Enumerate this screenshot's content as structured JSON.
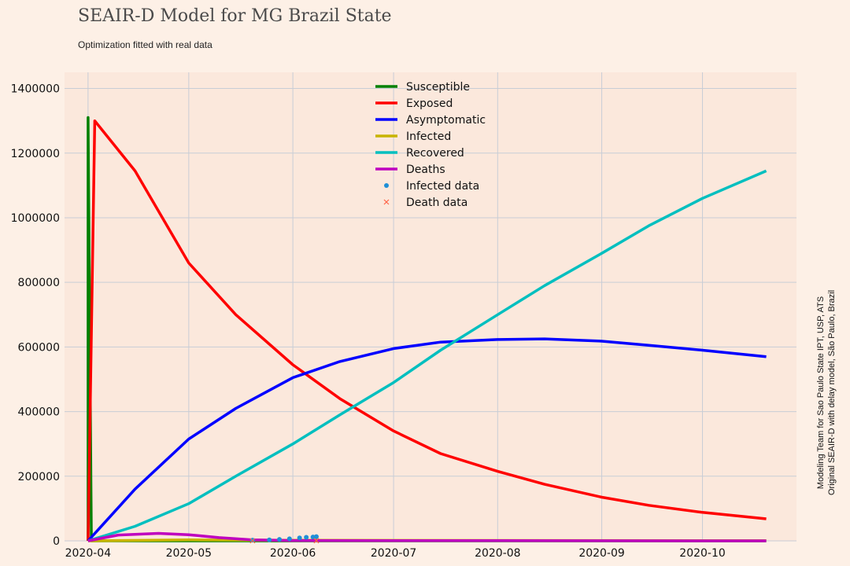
{
  "header": {
    "title": "SEAIR-D Model for MG Brazil State",
    "subtitle": "Optimization fitted with real data"
  },
  "side_note": {
    "line1": "Modeling Team for Sao Paulo State IPT, USP, ATS",
    "line2": "Original SEAIR-D with delay model, São Paulo, Brazil"
  },
  "chart_data": {
    "type": "line",
    "x_start": "2020-04-01",
    "x_end": "2020-10-20",
    "xlim": [
      "2020-03-25",
      "2020-10-29"
    ],
    "ylim": [
      0,
      1450000
    ],
    "yticks": [
      0,
      200000,
      400000,
      600000,
      800000,
      1000000,
      1200000,
      1400000
    ],
    "ytick_labels": [
      "0",
      "200000",
      "400000",
      "600000",
      "800000",
      "1000000",
      "1200000",
      "1400000"
    ],
    "xticks": [
      "2020-04-01",
      "2020-05-01",
      "2020-06-01",
      "2020-07-01",
      "2020-08-01",
      "2020-09-01",
      "2020-10-01"
    ],
    "xtick_labels": [
      "2020-04",
      "2020-05",
      "2020-06",
      "2020-07",
      "2020-08",
      "2020-09",
      "2020-10"
    ],
    "grid": true,
    "legend_position": "top-center",
    "series": [
      {
        "name": "Susceptible",
        "color": "#008000",
        "style": "line",
        "points": [
          [
            "2020-04-01",
            0
          ],
          [
            "2020-04-01",
            1310000
          ],
          [
            "2020-04-02",
            0
          ],
          [
            "2020-10-20",
            0
          ]
        ]
      },
      {
        "name": "Exposed",
        "color": "#ff0000",
        "style": "line",
        "points": [
          [
            "2020-04-01",
            0
          ],
          [
            "2020-04-03",
            1300000
          ],
          [
            "2020-04-15",
            1145000
          ],
          [
            "2020-05-01",
            860000
          ],
          [
            "2020-05-15",
            700000
          ],
          [
            "2020-06-01",
            545000
          ],
          [
            "2020-06-15",
            440000
          ],
          [
            "2020-07-01",
            340000
          ],
          [
            "2020-07-15",
            270000
          ],
          [
            "2020-08-01",
            215000
          ],
          [
            "2020-08-15",
            175000
          ],
          [
            "2020-09-01",
            135000
          ],
          [
            "2020-09-15",
            110000
          ],
          [
            "2020-10-01",
            88000
          ],
          [
            "2020-10-20",
            68000
          ]
        ]
      },
      {
        "name": "Asymptomatic",
        "color": "#0000ff",
        "style": "line",
        "points": [
          [
            "2020-04-01",
            0
          ],
          [
            "2020-04-15",
            160000
          ],
          [
            "2020-05-01",
            315000
          ],
          [
            "2020-05-15",
            410000
          ],
          [
            "2020-06-01",
            505000
          ],
          [
            "2020-06-15",
            555000
          ],
          [
            "2020-07-01",
            595000
          ],
          [
            "2020-07-15",
            615000
          ],
          [
            "2020-08-01",
            623000
          ],
          [
            "2020-08-15",
            625000
          ],
          [
            "2020-09-01",
            618000
          ],
          [
            "2020-09-15",
            605000
          ],
          [
            "2020-10-01",
            590000
          ],
          [
            "2020-10-20",
            570000
          ]
        ]
      },
      {
        "name": "Infected",
        "color": "#c8b400",
        "style": "line",
        "points": [
          [
            "2020-04-01",
            0
          ],
          [
            "2020-05-01",
            3000
          ],
          [
            "2020-06-01",
            2000
          ],
          [
            "2020-10-20",
            500
          ]
        ]
      },
      {
        "name": "Recovered",
        "color": "#00bfbf",
        "style": "line",
        "points": [
          [
            "2020-04-01",
            0
          ],
          [
            "2020-04-15",
            45000
          ],
          [
            "2020-05-01",
            115000
          ],
          [
            "2020-05-15",
            200000
          ],
          [
            "2020-06-01",
            300000
          ],
          [
            "2020-06-15",
            390000
          ],
          [
            "2020-07-01",
            490000
          ],
          [
            "2020-07-15",
            590000
          ],
          [
            "2020-08-01",
            700000
          ],
          [
            "2020-08-15",
            790000
          ],
          [
            "2020-09-01",
            890000
          ],
          [
            "2020-09-15",
            975000
          ],
          [
            "2020-10-01",
            1060000
          ],
          [
            "2020-10-20",
            1145000
          ]
        ]
      },
      {
        "name": "Deaths",
        "color": "#bf00bf",
        "style": "line",
        "points": [
          [
            "2020-04-01",
            0
          ],
          [
            "2020-04-10",
            18000
          ],
          [
            "2020-04-22",
            23000
          ],
          [
            "2020-05-01",
            19000
          ],
          [
            "2020-05-10",
            10000
          ],
          [
            "2020-05-20",
            3000
          ],
          [
            "2020-06-01",
            1000
          ],
          [
            "2020-10-20",
            0
          ]
        ]
      },
      {
        "name": "Infected data",
        "color": "#1f8fd6",
        "style": "dots",
        "points": [
          [
            "2020-05-20",
            2000
          ],
          [
            "2020-05-25",
            3000
          ],
          [
            "2020-05-28",
            4500
          ],
          [
            "2020-05-31",
            6500
          ],
          [
            "2020-06-03",
            9000
          ],
          [
            "2020-06-05",
            11000
          ],
          [
            "2020-06-07",
            12000
          ],
          [
            "2020-06-08",
            13000
          ]
        ]
      },
      {
        "name": "Death data",
        "color": "#ff6347",
        "style": "cross",
        "points": [
          [
            "2020-05-20",
            300
          ],
          [
            "2020-06-08",
            400
          ]
        ]
      }
    ]
  }
}
